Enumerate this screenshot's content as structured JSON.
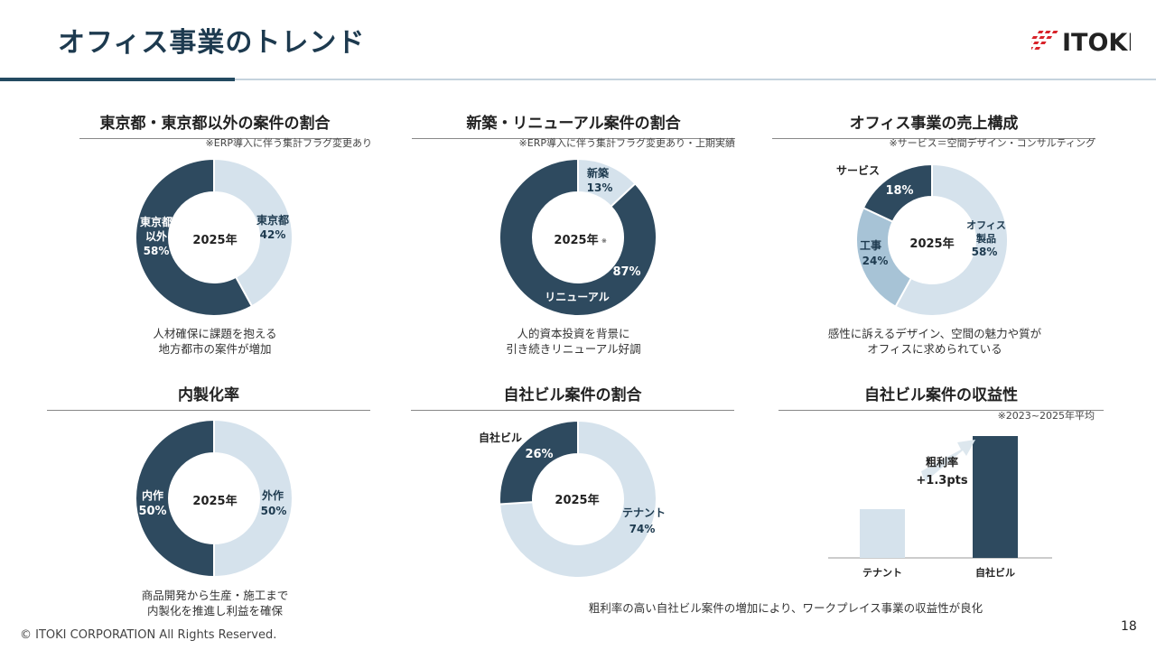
{
  "header": {
    "title": "オフィス事業のトレンド",
    "logo_text": "ITOKI"
  },
  "colors": {
    "dark": "#2e4a5f",
    "light": "#d5e2ec",
    "mid": "#a7c3d6",
    "accent": "#244a61"
  },
  "sections": {
    "tokyo": {
      "title": "東京都・東京都以外の案件の割合",
      "note": "※ERP導入に伴う集計フラグ変更あり",
      "center": "2025年",
      "label_a_1": "東京都",
      "label_a_2": "42%",
      "label_b_1": "東京都",
      "label_b_2": "以外",
      "label_b_3": "58%",
      "caption_1": "人材確保に課題を抱える",
      "caption_2": "地方都市の案件が増加"
    },
    "renewal": {
      "title": "新築・リニューアル案件の割合",
      "note": "※ERP導入に伴う集計フラグ変更あり・上期実績",
      "center": "2025年",
      "center_mark": "※",
      "label_a_1": "新築",
      "label_a_2": "13%",
      "label_b_1": "87%",
      "label_b_2": "リニューアル",
      "caption_1": "人的資本投資を背景に",
      "caption_2": "引き続きリニューアル好調"
    },
    "sales": {
      "title": "オフィス事業の売上構成",
      "note": "※サービス＝空間デザイン・コンサルティング",
      "center": "2025年",
      "label_service": "サービス",
      "label_service_pct": "18%",
      "label_office_1": "オフィス",
      "label_office_2": "製品",
      "label_office_pct": "58%",
      "label_works": "工事",
      "label_works_pct": "24%",
      "caption_1": "感性に訴えるデザイン、空間の魅力や質が",
      "caption_2": "オフィスに求められている"
    },
    "inhouse": {
      "title": "内製化率",
      "center": "2025年",
      "label_in_1": "内作",
      "label_in_2": "50%",
      "label_out_1": "外作",
      "label_out_2": "50%",
      "caption_1": "商品開発から生産・施工まで",
      "caption_2": "内製化を推進し利益を確保"
    },
    "ownbuilding": {
      "title": "自社ビル案件の割合",
      "center": "2025年",
      "label_own": "自社ビル",
      "label_own_pct": "26%",
      "label_tenant": "テナント",
      "label_tenant_pct": "74%"
    },
    "profit": {
      "title": "自社ビル案件の収益性",
      "note": "※2023~2025年平均",
      "arrow_label_1": "粗利率",
      "arrow_label_2": "+1.3pts",
      "caption": "粗利率の高い自社ビル案件の増加により、ワークプレイス事業の収益性が良化"
    }
  },
  "chart_data": [
    {
      "type": "pie",
      "title": "東京都・東京都以外の案件の割合",
      "categories": [
        "東京都",
        "東京都以外"
      ],
      "values": [
        42,
        58
      ]
    },
    {
      "type": "pie",
      "title": "新築・リニューアル案件の割合",
      "categories": [
        "新築",
        "リニューアル"
      ],
      "values": [
        13,
        87
      ]
    },
    {
      "type": "pie",
      "title": "オフィス事業の売上構成",
      "categories": [
        "オフィス製品",
        "工事",
        "サービス"
      ],
      "values": [
        58,
        24,
        18
      ]
    },
    {
      "type": "pie",
      "title": "内製化率",
      "categories": [
        "外作",
        "内作"
      ],
      "values": [
        50,
        50
      ]
    },
    {
      "type": "pie",
      "title": "自社ビル案件の割合",
      "categories": [
        "テナント",
        "自社ビル"
      ],
      "values": [
        74,
        26
      ]
    },
    {
      "type": "bar",
      "title": "自社ビル案件の収益性",
      "categories": [
        "テナント",
        "自社ビル"
      ],
      "values": [
        40,
        100
      ],
      "annotation": "粗利率 +1.3pts"
    }
  ],
  "footer": {
    "copyright": "© ITOKI CORPORATION All Rights Reserved.",
    "page_number": "18"
  }
}
